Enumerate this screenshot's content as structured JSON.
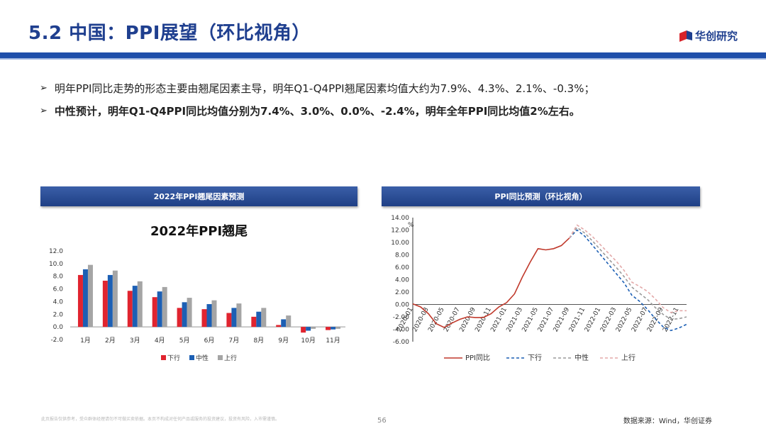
{
  "slide": {
    "title": "5.2 中国：PPI展望（环比视角）",
    "logo_text": "华创研究",
    "bullets": [
      "明年PPI同比走势的形态主要由翘尾因素主导，明年Q1-Q4PPI翘尾因素均值大约为7.9%、4.3%、2.1%、-0.3%；",
      "中性预计，明年Q1-Q4PPI同比均值分别为7.4%、3.0%、0.0%、-2.4%，明年全年PPI同比均值2%左右。"
    ],
    "bullet_icon": "arrow-right-icon",
    "page_number": "56",
    "source": "数据来源：Wind，华创证券",
    "disclaimer": "此页报告仅供参考，受众群体经理请勿不可做买卖依据。本页不构成对任何产品或服务的投资建议，投资有风险，入市需谨慎。"
  },
  "colors": {
    "title": "#1f3f8f",
    "band": "#1f4faa",
    "down": "#e0242f",
    "mid": "#1c5fb4",
    "up": "#a5a5a5",
    "ppi": "#c0392b",
    "forecast_down": "#1c5fb4",
    "forecast_mid": "#9a9a9a",
    "forecast_up": "#e3a9a9"
  },
  "chart_data": [
    {
      "type": "bar",
      "panel_title": "2022年PPI翘尾因素预测",
      "title": "2022年PPI翘尾",
      "categories": [
        "1月",
        "2月",
        "3月",
        "4月",
        "5月",
        "6月",
        "7月",
        "8月",
        "9月",
        "10月",
        "11月"
      ],
      "series": [
        {
          "name": "下行",
          "values": [
            8.2,
            7.3,
            5.7,
            4.7,
            3.0,
            2.8,
            2.2,
            1.6,
            0.3,
            -0.9,
            -0.5
          ]
        },
        {
          "name": "中性",
          "values": [
            9.1,
            8.2,
            6.5,
            5.6,
            3.9,
            3.6,
            3.0,
            2.4,
            1.2,
            -0.6,
            -0.4
          ]
        },
        {
          "name": "上行",
          "values": [
            9.8,
            8.9,
            7.2,
            6.3,
            4.6,
            4.2,
            3.7,
            3.0,
            1.8,
            -0.3,
            -0.3
          ]
        }
      ],
      "ylim": [
        -2.0,
        12.0
      ],
      "yticks": [
        "12.0",
        "10.0",
        "8.0",
        "6.0",
        "4.0",
        "2.0",
        "0.0",
        "-2.0"
      ],
      "legend": [
        "下行",
        "中性",
        "上行"
      ]
    },
    {
      "type": "line",
      "panel_title": "PPI同比预测（环比视角）",
      "ylabel": "%",
      "ylim": [
        -6.0,
        14.0
      ],
      "yticks": [
        "14.00",
        "12.00",
        "10.00",
        "8.00",
        "6.00",
        "4.00",
        "2.00",
        "0.00",
        "-2.00",
        "-4.00",
        "-6.00"
      ],
      "xticks": [
        "2020-01",
        "2020-03",
        "2020-05",
        "2020-07",
        "2020-09",
        "2020-11",
        "2021-01",
        "2021-03",
        "2021-05",
        "2021-07",
        "2021-09",
        "2021-11",
        "2022-01",
        "2022-03",
        "2022-05",
        "2022-07",
        "2022-09",
        "2022-11"
      ],
      "series": [
        {
          "name": "PPI同比",
          "start_index": 0,
          "values": [
            0.1,
            -0.4,
            -1.5,
            -3.1,
            -3.7,
            -3.0,
            -2.4,
            -2.0,
            -2.1,
            -2.1,
            -1.5,
            -0.4,
            0.3,
            1.7,
            4.4,
            6.8,
            9.0,
            8.8,
            9.0,
            9.5,
            10.7
          ]
        },
        {
          "name": "下行",
          "start_index": 20,
          "values": [
            10.7,
            12.0,
            11.0,
            9.5,
            8.0,
            6.5,
            5.0,
            3.5,
            1.5,
            0.5,
            -0.8,
            -2.3,
            -3.6,
            -4.2,
            -3.8,
            -3.2
          ]
        },
        {
          "name": "中性",
          "start_index": 20,
          "values": [
            10.7,
            12.4,
            11.5,
            10.2,
            8.8,
            7.4,
            6.0,
            4.5,
            2.8,
            1.8,
            0.8,
            -0.5,
            -1.6,
            -2.4,
            -2.3,
            -2.0
          ]
        },
        {
          "name": "上行",
          "start_index": 20,
          "values": [
            10.7,
            12.8,
            12.0,
            10.9,
            9.6,
            8.3,
            7.0,
            5.5,
            3.6,
            2.9,
            2.1,
            0.9,
            -0.5,
            -1.3,
            -1.0,
            -1.0
          ]
        }
      ],
      "legend": [
        "PPI同比",
        "下行",
        "中性",
        "上行"
      ]
    }
  ]
}
